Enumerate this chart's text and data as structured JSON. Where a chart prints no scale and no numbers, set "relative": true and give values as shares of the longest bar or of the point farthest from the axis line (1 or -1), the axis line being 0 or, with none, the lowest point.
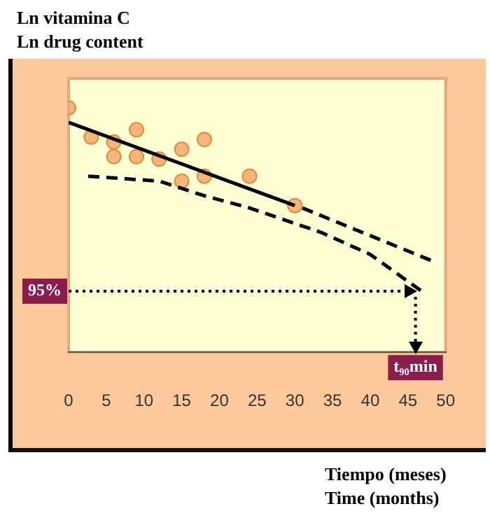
{
  "chart_data": {
    "type": "scatter",
    "relative": true,
    "ylabel": "Ln vitamina C\nLn drug content",
    "xlabel": "Tiempo (meses)\nTime (months)",
    "xlim": [
      0,
      50
    ],
    "xticks": [
      0,
      5,
      10,
      15,
      20,
      25,
      30,
      35,
      40,
      45,
      50
    ],
    "grid": false,
    "legend": false,
    "tick_labels": "x",
    "series": [
      {
        "type": "scatter",
        "marker": "circle",
        "color": "#f4a460",
        "x": [
          0,
          3,
          6,
          6,
          9,
          9,
          12,
          15,
          15,
          18,
          18,
          24,
          30
        ],
        "values": [
          1,
          0.88,
          0.86,
          0.8,
          0.91,
          0.8,
          0.79,
          0.83,
          0.7,
          0.87,
          0.72,
          0.72,
          0.6
        ]
      },
      {
        "type": "line",
        "marker": "none",
        "color": "#000000",
        "line_style": "solid",
        "x": [
          0,
          30
        ],
        "values": [
          0.94,
          0.6
        ]
      },
      {
        "type": "line",
        "marker": "none",
        "color": "#000000",
        "line_style": "dashed",
        "x": [
          31,
          48.5
        ],
        "values": [
          0.59,
          0.37
        ]
      },
      {
        "type": "line",
        "marker": "none",
        "color": "#000000",
        "line_style": "dashed",
        "x": [
          2.6,
          12,
          18,
          24,
          33.5,
          40,
          46.8
        ],
        "values": [
          0.72,
          0.7,
          0.64,
          0.59,
          0.49,
          0.4,
          0.25
        ]
      }
    ],
    "ref_lines": [
      {
        "axis": "y",
        "value": 0.25,
        "color": "#000000",
        "line_style": "dotted"
      },
      {
        "axis": "x",
        "value": 46,
        "color": "#000000",
        "line_style": "dotted"
      }
    ],
    "annotations": [
      "95%",
      "t₉₀min"
    ]
  }
}
